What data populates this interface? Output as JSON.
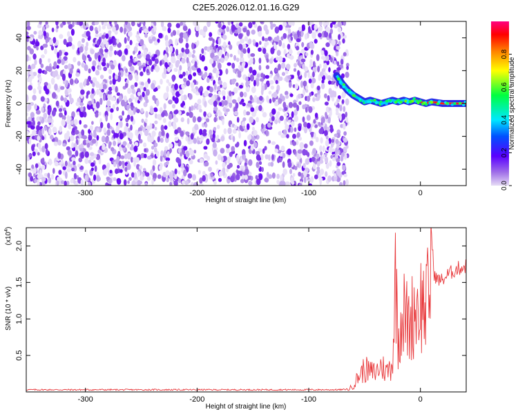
{
  "title": "C2E5.2026.012.01.16.G29",
  "chart_data": [
    {
      "type": "heatmap",
      "xlabel": "Height of straight line (km)",
      "ylabel": "Frequency (Hz)",
      "xlim": [
        -353,
        41
      ],
      "ylim": [
        -50,
        50
      ],
      "xticks": [
        -300,
        -200,
        -100,
        0
      ],
      "yticks": [
        -40,
        -20,
        0,
        20,
        40
      ],
      "colorbar": {
        "label": "Normalized spectral amplitude",
        "range": [
          0.0,
          1.0
        ],
        "ticks": [
          0.0,
          0.2,
          0.4,
          0.6,
          0.8
        ]
      },
      "noise_region_x": [
        -353,
        -65
      ],
      "signal_track": [
        {
          "x": -75,
          "y": 17
        },
        {
          "x": -70,
          "y": 12
        },
        {
          "x": -65,
          "y": 8
        },
        {
          "x": -60,
          "y": 5
        },
        {
          "x": -55,
          "y": 3
        },
        {
          "x": -50,
          "y": 1
        },
        {
          "x": -45,
          "y": 2
        },
        {
          "x": -40,
          "y": 1
        },
        {
          "x": -35,
          "y": 0
        },
        {
          "x": -30,
          "y": 1
        },
        {
          "x": -25,
          "y": 2
        },
        {
          "x": -20,
          "y": 1
        },
        {
          "x": -15,
          "y": 2
        },
        {
          "x": -10,
          "y": 1
        },
        {
          "x": -5,
          "y": 2
        },
        {
          "x": 0,
          "y": 1
        },
        {
          "x": 5,
          "y": 0
        },
        {
          "x": 10,
          "y": 1
        },
        {
          "x": 20,
          "y": 0
        },
        {
          "x": 30,
          "y": 0
        },
        {
          "x": 41,
          "y": 0
        }
      ]
    },
    {
      "type": "line",
      "xlabel": "Height of straight line (km)",
      "ylabel": "SNR (10 * v/v)",
      "scale_note": "(x10",
      "scale_exp": "4",
      "scale_close": ")",
      "xlim": [
        -353,
        41
      ],
      "ylim": [
        0,
        2.25
      ],
      "xticks": [
        -300,
        -200,
        -100,
        0
      ],
      "yticks": [
        0.5,
        1.0,
        1.5,
        2.0
      ],
      "ytick_labels": [
        "0.5",
        "1.0",
        "1.5",
        "2.0"
      ],
      "color": "#e8383b",
      "series": [
        {
          "x": [
            -353,
            -300,
            -250,
            -200,
            -150,
            -100,
            -70,
            -65,
            -60,
            -55,
            -50,
            -45,
            -40,
            -35,
            -30,
            -25,
            -22,
            -20,
            -18,
            -15,
            -10,
            -5,
            0,
            5,
            8,
            10,
            12,
            15,
            20,
            25,
            30,
            35,
            41
          ],
          "y": [
            0.02,
            0.02,
            0.02,
            0.02,
            0.02,
            0.02,
            0.02,
            0.03,
            0.1,
            0.25,
            0.35,
            0.3,
            0.3,
            0.4,
            0.3,
            0.45,
            1.85,
            0.8,
            1.1,
            1.2,
            1.0,
            1.3,
            1.35,
            1.3,
            1.5,
            2.25,
            1.7,
            1.6,
            1.6,
            1.68,
            1.73,
            1.77,
            1.8
          ]
        }
      ]
    }
  ]
}
